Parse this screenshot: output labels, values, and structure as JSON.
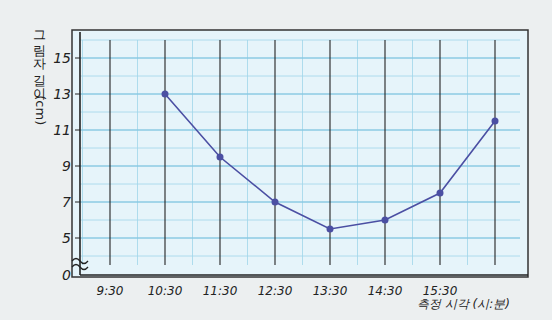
{
  "chart_data": {
    "type": "line",
    "y_label": "그림자 길이 (cm)",
    "x_label": "측정 시각 (시:분)",
    "categories": [
      "9:30",
      "10:30",
      "11:30",
      "12:30",
      "13:30",
      "14:30",
      "15:30",
      null
    ],
    "values": [
      null,
      13,
      9.5,
      7,
      5.5,
      6,
      7.5,
      11.5
    ],
    "color": "#4b4fa3",
    "marker": "circle",
    "ylim": [
      3.5,
      16
    ],
    "yticks": [
      5,
      7,
      9,
      11,
      13,
      15
    ],
    "axis_break": {
      "label": "0"
    },
    "grid": true
  }
}
